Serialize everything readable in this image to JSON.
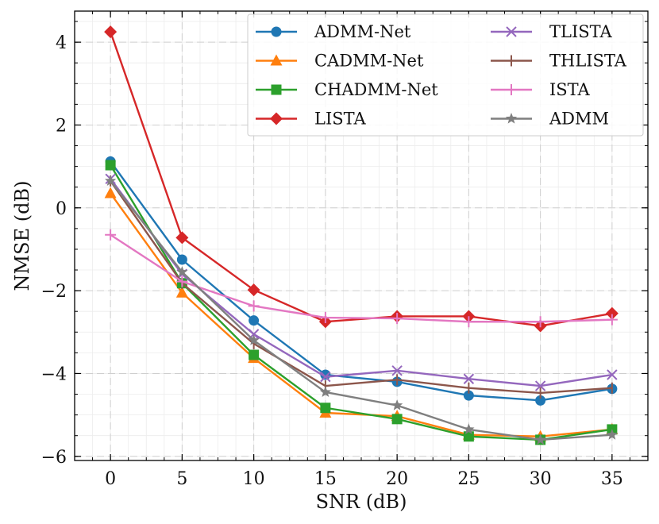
{
  "chart_data": {
    "type": "line",
    "title": "",
    "xlabel": "SNR (dB)",
    "ylabel": "NMSE (dB)",
    "x": [
      0,
      5,
      10,
      15,
      20,
      25,
      30,
      35
    ],
    "xlim": [
      -2.5,
      37.5
    ],
    "ylim": [
      -6.1,
      4.75
    ],
    "xticks": [
      0,
      5,
      10,
      15,
      20,
      25,
      30,
      35
    ],
    "xtick_labels": [
      "0",
      "5",
      "10",
      "15",
      "20",
      "25",
      "30",
      "35"
    ],
    "yticks": [
      -6,
      -4,
      -2,
      0,
      2,
      4
    ],
    "ytick_labels": [
      "−6",
      "−4",
      "−2",
      "0",
      "2",
      "4"
    ],
    "grid": true,
    "legend_position": "top-right",
    "series": [
      {
        "name": "ADMM-Net",
        "color": "#1f77b4",
        "marker": "circle",
        "values": [
          1.12,
          -1.25,
          -2.72,
          -4.03,
          -4.2,
          -4.53,
          -4.65,
          -4.37
        ]
      },
      {
        "name": "CADMM-Net",
        "color": "#ff7f0e",
        "marker": "triangle",
        "values": [
          0.35,
          -2.05,
          -3.63,
          -4.95,
          -5.03,
          -5.48,
          -5.52,
          -5.35
        ]
      },
      {
        "name": "CHADMM-Net",
        "color": "#2ca02c",
        "marker": "square",
        "values": [
          1.03,
          -1.82,
          -3.55,
          -4.83,
          -5.1,
          -5.52,
          -5.6,
          -5.35
        ]
      },
      {
        "name": "LISTA",
        "color": "#d62728",
        "marker": "diamond",
        "values": [
          4.25,
          -0.72,
          -1.98,
          -2.75,
          -2.62,
          -2.62,
          -2.85,
          -2.55
        ]
      },
      {
        "name": "TLISTA",
        "color": "#9467bd",
        "marker": "x",
        "values": [
          0.7,
          -1.6,
          -3.05,
          -4.08,
          -3.93,
          -4.13,
          -4.3,
          -4.03
        ]
      },
      {
        "name": "THLISTA",
        "color": "#8c564b",
        "marker": "tick",
        "values": [
          0.65,
          -1.82,
          -3.28,
          -4.3,
          -4.15,
          -4.35,
          -4.47,
          -4.35
        ]
      },
      {
        "name": "ISTA",
        "color": "#e377c2",
        "marker": "plus",
        "values": [
          -0.65,
          -1.78,
          -2.37,
          -2.65,
          -2.67,
          -2.75,
          -2.75,
          -2.7
        ]
      },
      {
        "name": "ADMM",
        "color": "#7f7f7f",
        "marker": "star",
        "values": [
          0.65,
          -1.55,
          -3.2,
          -4.45,
          -4.77,
          -5.35,
          -5.6,
          -5.48
        ]
      }
    ]
  }
}
